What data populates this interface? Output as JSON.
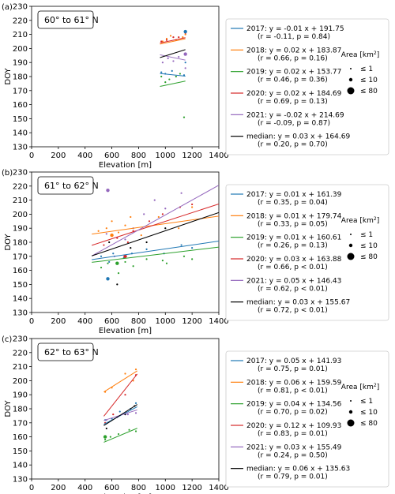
{
  "legend_area_title": "Area [km",
  "legend_area_title_sup": "2",
  "legend_area_title_end": "]",
  "area_sizes": [
    "≤ 1",
    "≤ 10",
    "≤ 80"
  ],
  "series_colors": {
    "2017": "#1f77b4",
    "2018": "#ff7f0e",
    "2019": "#2ca02c",
    "2020": "#d62728",
    "2021": "#9467bd",
    "median": "#000000"
  },
  "chart_data": [
    {
      "type": "scatter",
      "panel_label": "(a)",
      "region": "60° to 61° N",
      "xlabel": "Elevation [m]",
      "ylabel": "DOY",
      "xlim": [
        0,
        1400
      ],
      "ylim": [
        130,
        230
      ],
      "xticks": [
        0,
        200,
        400,
        600,
        800,
        1000,
        1200,
        1400
      ],
      "yticks": [
        130,
        140,
        150,
        160,
        170,
        180,
        190,
        200,
        210,
        220,
        230
      ],
      "series": [
        {
          "key": "2017",
          "eq": "2017: y = -0.01 x + 191.75",
          "stats": "(r = -0.11, p = 0.84)",
          "slope": -0.01,
          "intercept": 191.75,
          "xrange": [
            960,
            1150
          ],
          "points": [
            [
              970,
              183
            ],
            [
              1000,
              182
            ],
            [
              1050,
              184
            ],
            [
              1140,
              181
            ],
            [
              1150,
              190
            ]
          ]
        },
        {
          "key": "2018",
          "eq": "2018: y = 0.02 x + 183.87",
          "stats": "(r = 0.66, p = 0.16)",
          "slope": 0.02,
          "intercept": 183.87,
          "xrange": [
            960,
            1150
          ],
          "points": [
            [
              980,
              205
            ],
            [
              1010,
              207
            ],
            [
              1040,
              209
            ],
            [
              1080,
              206
            ],
            [
              1130,
              208
            ],
            [
              1150,
              210
            ]
          ]
        },
        {
          "key": "2019",
          "eq": "2019: y = 0.02 x + 153.77",
          "stats": "(r = 0.46, p = 0.36)",
          "slope": 0.02,
          "intercept": 153.77,
          "xrange": [
            960,
            1150
          ],
          "points": [
            [
              970,
              180
            ],
            [
              1000,
              176
            ],
            [
              1030,
              178
            ],
            [
              1080,
              180
            ],
            [
              1110,
              182
            ],
            [
              1140,
              151
            ]
          ]
        },
        {
          "key": "2020",
          "eq": "2020: y = 0.02 x + 184.69",
          "stats": "(r = 0.69, p = 0.13)",
          "slope": 0.02,
          "intercept": 184.69,
          "xrange": [
            960,
            1150
          ],
          "points": [
            [
              970,
              205
            ],
            [
              1010,
              206
            ],
            [
              1060,
              208
            ],
            [
              1100,
              208
            ],
            [
              1150,
              211
            ]
          ]
        },
        {
          "key": "2021",
          "eq": "2021: y = -0.02 x + 214.69",
          "stats": "(r = -0.09, p = 0.87)",
          "slope": -0.02,
          "intercept": 214.69,
          "xrange": [
            960,
            1150
          ],
          "points": [
            [
              980,
              190
            ],
            [
              1020,
              193
            ],
            [
              1060,
              191
            ],
            [
              1100,
              194
            ],
            [
              1150,
              186
            ]
          ]
        },
        {
          "key": "median",
          "eq": "median: y = 0.03 x + 164.69",
          "stats": "(r = 0.20, p = 0.70)",
          "slope": 0.03,
          "intercept": 164.69,
          "xrange": [
            960,
            1150
          ],
          "points": []
        }
      ],
      "large_points": [
        [
          1150,
          212,
          "2017"
        ],
        [
          1150,
          196,
          "2021"
        ]
      ]
    },
    {
      "type": "scatter",
      "panel_label": "(b)",
      "region": "61° to 62° N",
      "xlabel": "Elevation [m]",
      "ylabel": "DOY",
      "xlim": [
        0,
        1400
      ],
      "ylim": [
        130,
        230
      ],
      "xticks": [
        0,
        200,
        400,
        600,
        800,
        1000,
        1200,
        1400
      ],
      "yticks": [
        130,
        140,
        150,
        160,
        170,
        180,
        190,
        200,
        210,
        220,
        230
      ],
      "series": [
        {
          "key": "2017",
          "eq": "2017: y = 0.01 x + 161.39",
          "stats": "(r = 0.35, p = 0.04)",
          "slope": 0.0139,
          "intercept": 161.39,
          "xrange": [
            450,
            1400
          ],
          "points": [
            [
              520,
              170
            ],
            [
              580,
              166
            ],
            [
              610,
              172
            ],
            [
              690,
              169
            ],
            [
              750,
              172
            ],
            [
              860,
              175
            ],
            [
              990,
              172
            ],
            [
              1120,
              178
            ],
            [
              1200,
              176
            ]
          ]
        },
        {
          "key": "2018",
          "eq": "2018: y = 0.01 x + 179.74",
          "stats": "(r = 0.33, p = 0.05)",
          "slope": 0.0135,
          "intercept": 179.74,
          "xrange": [
            450,
            1400
          ],
          "points": [
            [
              500,
              188
            ],
            [
              560,
              190
            ],
            [
              600,
              195
            ],
            [
              650,
              187
            ],
            [
              700,
              192
            ],
            [
              740,
              198
            ],
            [
              820,
              185
            ],
            [
              950,
              198
            ],
            [
              1100,
              190
            ],
            [
              1200,
              205
            ]
          ]
        },
        {
          "key": "2019",
          "eq": "2019: y = 0.01 x + 160.61",
          "stats": "(r = 0.26, p = 0.13)",
          "slope": 0.0114,
          "intercept": 160.61,
          "xrange": [
            450,
            1400
          ],
          "points": [
            [
              520,
              162
            ],
            [
              570,
              165
            ],
            [
              650,
              158
            ],
            [
              700,
              166
            ],
            [
              760,
              163
            ],
            [
              860,
              168
            ],
            [
              980,
              167
            ],
            [
              1010,
              165
            ],
            [
              1140,
              170
            ],
            [
              1200,
              168
            ]
          ]
        },
        {
          "key": "2020",
          "eq": "2020: y = 0.03 x + 163.88",
          "stats": "(r = 0.66, p < 0.01)",
          "slope": 0.031,
          "intercept": 163.88,
          "xrange": [
            450,
            1400
          ],
          "points": [
            [
              540,
              178
            ],
            [
              600,
              185
            ],
            [
              640,
              183
            ],
            [
              720,
              180
            ],
            [
              760,
              188
            ],
            [
              880,
              195
            ],
            [
              980,
              200
            ],
            [
              1110,
              205
            ],
            [
              1200,
              207
            ]
          ]
        },
        {
          "key": "2021",
          "eq": "2021: y = 0.05 x + 146.43",
          "stats": "(r = 0.62, p < 0.01)",
          "slope": 0.053,
          "intercept": 146.43,
          "xrange": [
            450,
            1400
          ],
          "points": [
            [
              560,
              186
            ],
            [
              620,
              170
            ],
            [
              700,
              182
            ],
            [
              760,
              190
            ],
            [
              840,
              200
            ],
            [
              920,
              210
            ],
            [
              1000,
              204
            ],
            [
              1120,
              215
            ]
          ]
        },
        {
          "key": "median",
          "eq": "median: y = 0.03 x + 155.67",
          "stats": "(r = 0.72, p < 0.01)",
          "slope": 0.0325,
          "intercept": 155.67,
          "xrange": [
            450,
            1400
          ],
          "points": [
            [
              580,
              180
            ],
            [
              640,
              150
            ],
            [
              740,
              176
            ],
            [
              860,
              180
            ],
            [
              1000,
              190
            ]
          ]
        }
      ],
      "large_points": [
        [
          570,
          217,
          "2021"
        ],
        [
          570,
          154,
          "2017"
        ],
        [
          640,
          165,
          "2019"
        ],
        [
          700,
          170,
          "2020"
        ],
        [
          600,
          185,
          "2018"
        ]
      ]
    },
    {
      "type": "scatter",
      "panel_label": "(c)",
      "region": "62° to 63° N",
      "xlabel": "Elevation [m]",
      "ylabel": "DOY",
      "xlim": [
        0,
        1400
      ],
      "ylim": [
        130,
        230
      ],
      "xticks": [
        0,
        200,
        400,
        600,
        800,
        1000,
        1200,
        1400
      ],
      "yticks": [
        130,
        140,
        150,
        160,
        170,
        180,
        190,
        200,
        210,
        220,
        230
      ],
      "series": [
        {
          "key": "2017",
          "eq": "2017: y = 0.05 x + 141.93",
          "stats": "(r = 0.75, p = 0.01)",
          "slope": 0.05,
          "intercept": 141.93,
          "xrange": [
            540,
            790
          ],
          "points": [
            [
              550,
              172
            ],
            [
              600,
              173
            ],
            [
              660,
              178
            ],
            [
              740,
              180
            ],
            [
              780,
              184
            ]
          ]
        },
        {
          "key": "2018",
          "eq": "2018: y = 0.06 x + 159.59",
          "stats": "(r = 0.81, p < 0.01)",
          "slope": 0.06,
          "intercept": 159.59,
          "xrange": [
            540,
            790
          ],
          "points": [
            [
              550,
              192
            ],
            [
              600,
              195
            ],
            [
              700,
              205
            ],
            [
              760,
              200
            ],
            [
              780,
              208
            ]
          ]
        },
        {
          "key": "2019",
          "eq": "2019: y = 0.04 x + 134.56",
          "stats": "(r = 0.70, p = 0.02)",
          "slope": 0.04,
          "intercept": 134.56,
          "xrange": [
            540,
            790
          ],
          "points": [
            [
              550,
              158
            ],
            [
              590,
              160
            ],
            [
              650,
              162
            ],
            [
              730,
              165
            ],
            [
              780,
              164
            ]
          ]
        },
        {
          "key": "2020",
          "eq": "2020: y = 0.12 x + 109.93",
          "stats": "(r = 0.83, p = 0.01)",
          "slope": 0.12,
          "intercept": 109.93,
          "xrange": [
            540,
            790
          ],
          "points": [
            [
              550,
              170
            ],
            [
              610,
              176
            ],
            [
              700,
              190
            ],
            [
              780,
              204
            ]
          ]
        },
        {
          "key": "2021",
          "eq": "2021: y = 0.03 x + 155.49",
          "stats": "(r = 0.24, p = 0.50)",
          "slope": 0.03,
          "intercept": 155.49,
          "xrange": [
            540,
            790
          ],
          "points": [
            [
              560,
              172
            ],
            [
              640,
              174
            ],
            [
              720,
              176
            ],
            [
              780,
              177
            ]
          ]
        },
        {
          "key": "median",
          "eq": "median: y = 0.06 x + 135.63",
          "stats": "(r = 0.79, p = 0.01)",
          "slope": 0.06,
          "intercept": 135.63,
          "xrange": [
            540,
            790
          ],
          "points": [
            [
              560,
              166
            ],
            [
              700,
              176
            ],
            [
              770,
              182
            ]
          ]
        }
      ],
      "large_points": [
        [
          550,
          160,
          "2019"
        ]
      ]
    }
  ]
}
